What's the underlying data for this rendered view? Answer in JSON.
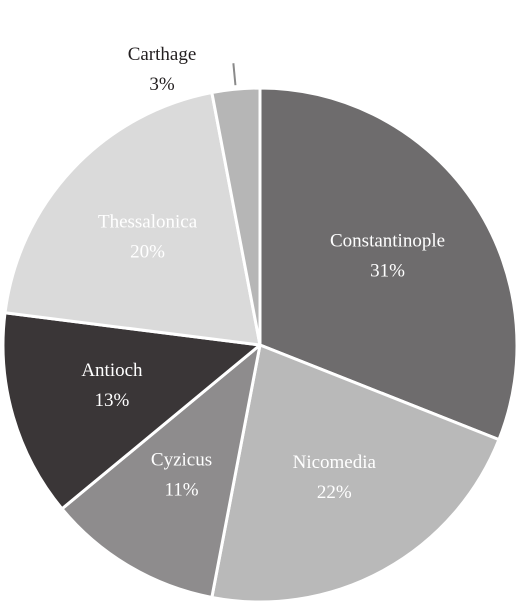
{
  "chart_data": {
    "type": "pie",
    "title": "",
    "start_angle_deg": 0,
    "direction": "clockwise",
    "slices": [
      {
        "label": "Constantinople",
        "value": 31,
        "value_label": "31%",
        "color": "#6e6c6d",
        "text_color": "#ffffff"
      },
      {
        "label": "Nicomedia",
        "value": 22,
        "value_label": "22%",
        "color": "#b9b9b9",
        "text_color": "#ffffff"
      },
      {
        "label": "Cyzicus",
        "value": 11,
        "value_label": "11%",
        "color": "#8e8c8d",
        "text_color": "#ffffff"
      },
      {
        "label": "Antioch",
        "value": 13,
        "value_label": "13%",
        "color": "#3a3637",
        "text_color": "#ffffff"
      },
      {
        "label": "Thessalonica",
        "value": 20,
        "value_label": "20%",
        "color": "#dadada",
        "text_color": "#ffffff"
      },
      {
        "label": "Carthage",
        "value": 3,
        "value_label": "3%",
        "color": "#b6b6b6",
        "text_color": "#231f20",
        "label_outside": true
      }
    ]
  }
}
